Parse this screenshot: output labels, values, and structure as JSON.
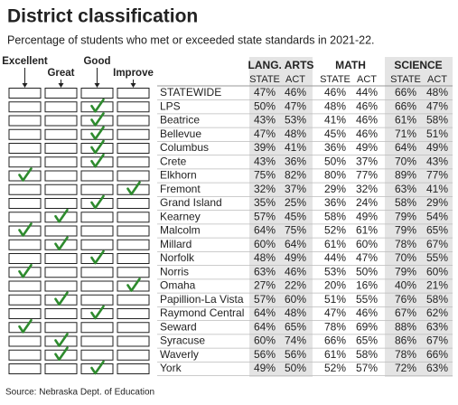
{
  "title": "District classification",
  "subtitle": "Percentage of students who met or exceeded state standards in 2021-22.",
  "classification_headers": [
    "Excellent",
    "Great",
    "Good",
    "Improve"
  ],
  "subject_headers": [
    "LANG. ARTS",
    "MATH",
    "SCIENCE"
  ],
  "sub_headers": [
    "STATE",
    "ACT",
    "STATE",
    "ACT",
    "STATE",
    "ACT"
  ],
  "rows": [
    {
      "district": "STATEWIDE",
      "checks": [
        false,
        false,
        false,
        false
      ],
      "scores": [
        "47%",
        "46%",
        "46%",
        "44%",
        "66%",
        "48%"
      ]
    },
    {
      "district": "LPS",
      "checks": [
        false,
        false,
        true,
        false
      ],
      "scores": [
        "50%",
        "47%",
        "48%",
        "46%",
        "66%",
        "47%"
      ]
    },
    {
      "district": "Beatrice",
      "checks": [
        false,
        false,
        true,
        false
      ],
      "scores": [
        "43%",
        "53%",
        "41%",
        "46%",
        "61%",
        "58%"
      ]
    },
    {
      "district": "Bellevue",
      "checks": [
        false,
        false,
        true,
        false
      ],
      "scores": [
        "47%",
        "48%",
        "45%",
        "46%",
        "71%",
        "51%"
      ]
    },
    {
      "district": "Columbus",
      "checks": [
        false,
        false,
        true,
        false
      ],
      "scores": [
        "39%",
        "41%",
        "36%",
        "49%",
        "64%",
        "49%"
      ]
    },
    {
      "district": "Crete",
      "checks": [
        false,
        false,
        true,
        false
      ],
      "scores": [
        "43%",
        "36%",
        "50%",
        "37%",
        "70%",
        "43%"
      ]
    },
    {
      "district": "Elkhorn",
      "checks": [
        true,
        false,
        false,
        false
      ],
      "scores": [
        "75%",
        "82%",
        "80%",
        "77%",
        "89%",
        "77%"
      ]
    },
    {
      "district": "Fremont",
      "checks": [
        false,
        false,
        false,
        true
      ],
      "scores": [
        "32%",
        "37%",
        "29%",
        "32%",
        "63%",
        "41%"
      ]
    },
    {
      "district": "Grand Island",
      "checks": [
        false,
        false,
        true,
        false
      ],
      "scores": [
        "35%",
        "25%",
        "36%",
        "24%",
        "58%",
        "29%"
      ]
    },
    {
      "district": "Kearney",
      "checks": [
        false,
        true,
        false,
        false
      ],
      "scores": [
        "57%",
        "45%",
        "58%",
        "49%",
        "79%",
        "54%"
      ]
    },
    {
      "district": "Malcolm",
      "checks": [
        true,
        false,
        false,
        false
      ],
      "scores": [
        "64%",
        "75%",
        "52%",
        "61%",
        "79%",
        "65%"
      ]
    },
    {
      "district": "Millard",
      "checks": [
        false,
        true,
        false,
        false
      ],
      "scores": [
        "60%",
        "64%",
        "61%",
        "60%",
        "78%",
        "67%"
      ]
    },
    {
      "district": "Norfolk",
      "checks": [
        false,
        false,
        true,
        false
      ],
      "scores": [
        "48%",
        "49%",
        "44%",
        "47%",
        "70%",
        "55%"
      ]
    },
    {
      "district": "Norris",
      "checks": [
        true,
        false,
        false,
        false
      ],
      "scores": [
        "63%",
        "46%",
        "53%",
        "50%",
        "79%",
        "60%"
      ]
    },
    {
      "district": "Omaha",
      "checks": [
        false,
        false,
        false,
        true
      ],
      "scores": [
        "27%",
        "22%",
        "20%",
        "16%",
        "40%",
        "21%"
      ]
    },
    {
      "district": "Papillion-La Vista",
      "checks": [
        false,
        true,
        false,
        false
      ],
      "scores": [
        "57%",
        "60%",
        "51%",
        "55%",
        "76%",
        "58%"
      ]
    },
    {
      "district": "Raymond Central",
      "checks": [
        false,
        false,
        true,
        false
      ],
      "scores": [
        "64%",
        "48%",
        "47%",
        "46%",
        "67%",
        "62%"
      ]
    },
    {
      "district": "Seward",
      "checks": [
        true,
        false,
        false,
        false
      ],
      "scores": [
        "64%",
        "65%",
        "78%",
        "69%",
        "88%",
        "63%"
      ]
    },
    {
      "district": "Syracuse",
      "checks": [
        false,
        true,
        false,
        false
      ],
      "scores": [
        "60%",
        "74%",
        "66%",
        "65%",
        "86%",
        "67%"
      ]
    },
    {
      "district": "Waverly",
      "checks": [
        false,
        true,
        false,
        false
      ],
      "scores": [
        "56%",
        "56%",
        "61%",
        "58%",
        "78%",
        "66%"
      ]
    },
    {
      "district": "York",
      "checks": [
        false,
        false,
        true,
        false
      ],
      "scores": [
        "49%",
        "50%",
        "52%",
        "57%",
        "72%",
        "63%"
      ]
    }
  ],
  "source": "Source: Nebraska Dept. of Education"
}
